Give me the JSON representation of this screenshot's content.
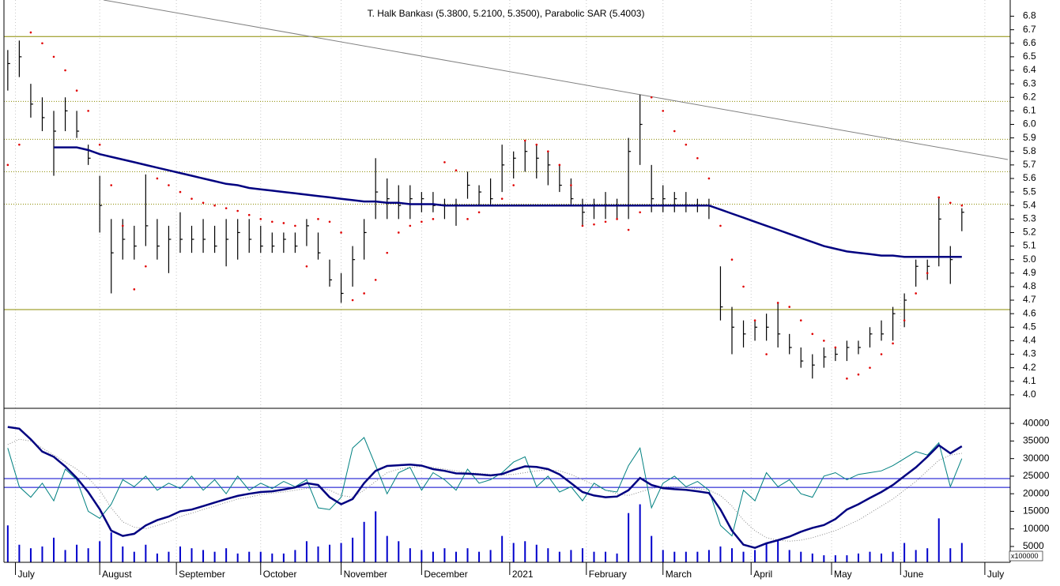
{
  "chart_data": [
    {
      "type": "ohlc",
      "title": "T. Halk Bankası (5.3800, 5.2100, 5.3500), Parabolic SAR (5.4003)",
      "color": "#000000",
      "x": [
        0,
        3,
        6,
        9,
        12,
        15,
        18,
        21,
        24,
        27,
        30,
        33,
        36,
        39,
        42,
        45,
        48,
        51,
        54,
        57,
        60,
        63,
        66,
        69,
        72,
        75,
        78,
        81,
        84,
        87,
        90,
        93,
        96,
        99,
        102,
        105,
        108,
        111,
        114,
        117,
        120,
        123,
        126,
        129,
        132,
        135,
        138,
        141,
        144,
        147,
        150,
        153,
        156,
        159,
        162,
        165,
        168,
        171,
        174,
        177,
        180,
        183,
        186,
        189,
        192,
        195,
        198,
        201,
        204,
        207,
        210,
        213,
        216,
        219,
        222,
        225,
        228,
        231,
        234,
        237,
        240,
        243,
        246,
        249
      ],
      "high": [
        6.55,
        6.62,
        6.3,
        6.2,
        6.1,
        6.2,
        6.1,
        5.85,
        5.62,
        5.3,
        5.3,
        5.25,
        5.63,
        5.3,
        5.25,
        5.35,
        5.25,
        5.3,
        5.25,
        5.3,
        5.3,
        5.3,
        5.25,
        5.2,
        5.2,
        5.2,
        5.3,
        5.2,
        5.0,
        4.9,
        5.1,
        5.3,
        5.75,
        5.6,
        5.55,
        5.55,
        5.5,
        5.5,
        5.45,
        5.45,
        5.65,
        5.55,
        5.6,
        5.85,
        5.8,
        5.88,
        5.85,
        5.8,
        5.7,
        5.6,
        5.45,
        5.45,
        5.5,
        5.45,
        5.9,
        6.22,
        5.7,
        5.55,
        5.5,
        5.5,
        5.45,
        5.45,
        4.95,
        4.65,
        4.55,
        4.55,
        4.6,
        4.68,
        4.45,
        4.35,
        4.3,
        4.35,
        4.35,
        4.4,
        4.4,
        4.5,
        4.55,
        4.65,
        4.75,
        5.0,
        5.0,
        5.46,
        5.1,
        5.38
      ],
      "low": [
        6.25,
        6.35,
        6.05,
        5.95,
        5.62,
        5.95,
        5.9,
        5.7,
        5.2,
        4.75,
        5.0,
        5.0,
        5.1,
        5.0,
        4.9,
        5.05,
        5.05,
        5.05,
        5.05,
        4.95,
        5.0,
        5.05,
        5.05,
        5.05,
        5.05,
        5.05,
        5.1,
        5.0,
        4.8,
        4.68,
        4.8,
        5.0,
        5.3,
        5.3,
        5.3,
        5.3,
        5.35,
        5.35,
        5.3,
        5.25,
        5.45,
        5.4,
        5.4,
        5.5,
        5.6,
        5.65,
        5.6,
        5.55,
        5.5,
        5.4,
        5.25,
        5.3,
        5.3,
        5.3,
        5.3,
        5.7,
        5.35,
        5.35,
        5.35,
        5.35,
        5.35,
        5.3,
        4.55,
        4.3,
        4.35,
        4.4,
        4.4,
        4.35,
        4.3,
        4.2,
        4.12,
        4.2,
        4.25,
        4.25,
        4.3,
        4.35,
        4.4,
        4.4,
        4.5,
        4.8,
        4.85,
        4.95,
        4.82,
        5.21
      ],
      "close": [
        6.45,
        6.5,
        6.15,
        6.05,
        5.95,
        6.1,
        5.95,
        5.75,
        5.4,
        5.05,
        5.15,
        5.1,
        5.25,
        5.1,
        5.15,
        5.15,
        5.15,
        5.15,
        5.1,
        5.15,
        5.2,
        5.15,
        5.1,
        5.1,
        5.15,
        5.1,
        5.25,
        5.05,
        4.85,
        4.75,
        5.0,
        5.2,
        5.5,
        5.45,
        5.4,
        5.45,
        5.45,
        5.4,
        5.4,
        5.4,
        5.55,
        5.5,
        5.45,
        5.7,
        5.75,
        5.8,
        5.75,
        5.7,
        5.55,
        5.45,
        5.35,
        5.4,
        5.4,
        5.4,
        5.8,
        6.0,
        5.45,
        5.45,
        5.45,
        5.4,
        5.4,
        5.4,
        4.65,
        4.5,
        4.45,
        4.5,
        4.5,
        4.45,
        4.35,
        4.25,
        4.22,
        4.28,
        4.3,
        4.35,
        4.35,
        4.45,
        4.45,
        4.6,
        4.7,
        4.95,
        4.95,
        5.3,
        5.0,
        5.35
      ],
      "overlays": [
        {
          "type": "dots",
          "color": "#e00000",
          "values": [
            5.7,
            5.85,
            6.68,
            6.6,
            6.5,
            6.4,
            6.25,
            6.1,
            5.85,
            5.55,
            5.25,
            4.78,
            4.95,
            5.6,
            5.55,
            5.5,
            5.45,
            5.42,
            5.4,
            5.38,
            5.36,
            5.33,
            5.3,
            5.28,
            5.27,
            5.25,
            4.95,
            5.3,
            5.28,
            5.2,
            4.7,
            4.75,
            4.85,
            5.05,
            5.2,
            5.25,
            5.28,
            5.3,
            5.72,
            5.66,
            5.3,
            5.35,
            5.4,
            5.45,
            5.55,
            5.88,
            5.85,
            5.8,
            5.7,
            5.55,
            5.25,
            5.26,
            5.28,
            5.3,
            5.22,
            5.35,
            6.2,
            6.1,
            5.95,
            5.85,
            5.75,
            5.6,
            5.25,
            5.0,
            4.8,
            4.55,
            4.3,
            4.68,
            4.65,
            4.55,
            4.45,
            4.4,
            4.35,
            4.12,
            4.15,
            4.2,
            4.3,
            4.38,
            4.55,
            4.75,
            4.9,
            5.46,
            5.42,
            5.4
          ]
        },
        {
          "type": "line",
          "color": "#000080",
          "width": 2.5,
          "values": [
            null,
            null,
            null,
            null,
            5.83,
            5.83,
            5.83,
            5.81,
            5.78,
            5.76,
            5.74,
            5.72,
            5.7,
            5.68,
            5.66,
            5.64,
            5.62,
            5.6,
            5.58,
            5.56,
            5.55,
            5.53,
            5.52,
            5.51,
            5.5,
            5.49,
            5.48,
            5.47,
            5.46,
            5.45,
            5.44,
            5.43,
            5.43,
            5.42,
            5.42,
            5.41,
            5.41,
            5.41,
            5.4,
            5.4,
            5.4,
            5.4,
            5.4,
            5.4,
            5.4,
            5.4,
            5.4,
            5.4,
            5.4,
            5.4,
            5.4,
            5.4,
            5.4,
            5.4,
            5.4,
            5.4,
            5.4,
            5.4,
            5.4,
            5.4,
            5.4,
            5.4,
            5.37,
            5.34,
            5.31,
            5.28,
            5.25,
            5.22,
            5.19,
            5.16,
            5.13,
            5.1,
            5.08,
            5.06,
            5.05,
            5.04,
            5.03,
            5.03,
            5.02,
            5.02,
            5.02,
            5.02,
            5.02,
            5.02
          ]
        }
      ],
      "levels": [
        {
          "value": 6.65,
          "style": "solid"
        },
        {
          "value": 6.17,
          "style": "dotted"
        },
        {
          "value": 5.89,
          "style": "dotted"
        },
        {
          "value": 5.65,
          "style": "dotted"
        },
        {
          "value": 5.41,
          "style": "dotted"
        },
        {
          "value": 4.63,
          "style": "solid"
        }
      ],
      "level_color": "#8b8b00",
      "trendline": {
        "x": [
          25,
          261
        ],
        "y": [
          6.92,
          5.74
        ],
        "color": "#808080"
      },
      "xlim": [
        -1,
        261
      ],
      "ylim": [
        3.9,
        6.92
      ],
      "yticks": [
        {
          "value": 4,
          "label": "4.0"
        },
        4.1,
        4.2,
        4.3,
        4.4,
        4.5,
        4.6,
        4.7,
        4.8,
        4.9,
        {
          "value": 5,
          "label": "5.0"
        },
        5.1,
        5.2,
        5.3,
        5.4,
        5.5,
        5.6,
        5.7,
        5.8,
        5.9,
        {
          "value": 6,
          "label": "6.0"
        },
        6.1,
        6.2,
        6.3,
        6.4,
        6.5,
        6.6,
        6.7,
        6.8
      ]
    },
    {
      "type": "indicator",
      "unit_label": "x100000",
      "series": [
        {
          "type": "bar",
          "color": "#0000cc",
          "values": [
            11000,
            5500,
            4500,
            5000,
            7500,
            4000,
            5500,
            4500,
            6500,
            9000,
            5000,
            3500,
            5500,
            3000,
            3500,
            5000,
            4500,
            4000,
            3500,
            4500,
            3000,
            3500,
            3500,
            3000,
            3000,
            4000,
            6500,
            5000,
            5500,
            6000,
            7500,
            12000,
            15000,
            8000,
            6500,
            4500,
            4000,
            3500,
            4500,
            3500,
            4500,
            3500,
            4000,
            8000,
            6000,
            6500,
            5500,
            4500,
            3500,
            4000,
            4500,
            3500,
            3500,
            3000,
            14500,
            17000,
            8000,
            4000,
            3500,
            3500,
            3500,
            4000,
            5000,
            4500,
            3500,
            4000,
            6000,
            7000,
            4000,
            3500,
            3000,
            2500,
            2500,
            2500,
            3000,
            3500,
            3000,
            3500,
            6000,
            4000,
            4500,
            13000,
            4500,
            6000
          ]
        },
        {
          "type": "dotted",
          "color": "#888888",
          "values": [
            34000,
            35500,
            35000,
            33000,
            31000,
            29000,
            27000,
            24500,
            21000,
            16000,
            12000,
            10500,
            10000,
            11000,
            12000,
            13500,
            14500,
            15500,
            16500,
            17500,
            18500,
            19000,
            19800,
            20200,
            20500,
            21000,
            21500,
            22000,
            21000,
            19500,
            19000,
            21000,
            23500,
            26000,
            27000,
            27500,
            27800,
            27500,
            27000,
            26500,
            26000,
            25800,
            25500,
            25300,
            25500,
            26000,
            26500,
            26800,
            26500,
            25500,
            24000,
            22500,
            21000,
            20000,
            19500,
            20500,
            21500,
            22000,
            22000,
            21800,
            21500,
            21000,
            19500,
            16500,
            12500,
            9500,
            7500,
            6800,
            6500,
            6800,
            7500,
            8500,
            9500,
            11000,
            12500,
            14500,
            16500,
            18500,
            21000,
            23500,
            26500,
            29500,
            31000,
            31500
          ]
        },
        {
          "type": "line",
          "color": "#008080",
          "width": 1,
          "values": [
            33000,
            22000,
            19000,
            23000,
            18000,
            27000,
            24000,
            15000,
            13000,
            17000,
            24000,
            22000,
            25000,
            21000,
            23000,
            21500,
            25000,
            21000,
            24000,
            20000,
            25000,
            21000,
            23000,
            21500,
            23500,
            22000,
            24000,
            16000,
            15500,
            19000,
            33000,
            36000,
            28000,
            20000,
            26000,
            27500,
            21000,
            26000,
            24000,
            21000,
            27000,
            23000,
            24000,
            26000,
            29000,
            30500,
            22000,
            25000,
            20500,
            22000,
            18000,
            23000,
            21000,
            20500,
            28000,
            33000,
            16000,
            23000,
            25000,
            22000,
            23500,
            21000,
            11000,
            8000,
            21000,
            18000,
            26000,
            22000,
            24000,
            20000,
            19000,
            25000,
            26000,
            24000,
            25500,
            26000,
            26500,
            28000,
            30000,
            32000,
            31000,
            34500,
            22000,
            30000
          ]
        },
        {
          "type": "line",
          "color": "#000080",
          "width": 2.5,
          "values": [
            39000,
            38500,
            35500,
            32000,
            30500,
            27800,
            24500,
            20500,
            15600,
            9500,
            8000,
            8600,
            11000,
            12500,
            13500,
            15000,
            15500,
            16500,
            17500,
            18500,
            19400,
            20000,
            20500,
            20700,
            21200,
            21800,
            23000,
            22500,
            19000,
            17000,
            18500,
            23000,
            26500,
            27900,
            28100,
            28300,
            28000,
            27000,
            26500,
            25800,
            25700,
            25500,
            25200,
            25600,
            26800,
            27800,
            27600,
            27000,
            25500,
            23000,
            20500,
            19500,
            19000,
            19200,
            21000,
            24500,
            22500,
            21600,
            21300,
            21100,
            20700,
            20200,
            15500,
            9500,
            5500,
            4600,
            5900,
            6800,
            7800,
            9200,
            10300,
            11100,
            12800,
            15500,
            17000,
            18800,
            20500,
            22500,
            25000,
            27500,
            30500,
            33800,
            31500,
            33500
          ]
        }
      ],
      "levels": [
        {
          "value": 24300,
          "style": "solid"
        },
        {
          "value": 21800,
          "style": "solid"
        }
      ],
      "level_color": "#0000cc",
      "xlim": [
        -1,
        261
      ],
      "ylim": [
        500,
        44300
      ],
      "yticks": [
        5000,
        10000,
        15000,
        20000,
        25000,
        30000,
        35000,
        40000
      ],
      "xticks": [
        {
          "value": 2,
          "label": "July"
        },
        {
          "value": 24,
          "label": "August"
        },
        {
          "value": 44,
          "label": "September"
        },
        {
          "value": 66,
          "label": "October"
        },
        {
          "value": 87,
          "label": "November"
        },
        {
          "value": 108,
          "label": "December"
        },
        {
          "value": 131,
          "label": "2021"
        },
        {
          "value": 151,
          "label": "February"
        },
        {
          "value": 171,
          "label": "March"
        },
        {
          "value": 194,
          "label": "April"
        },
        {
          "value": 215,
          "label": "May"
        },
        {
          "value": 233,
          "label": "June"
        },
        {
          "value": 255,
          "label": "July"
        }
      ],
      "grid": true
    }
  ]
}
